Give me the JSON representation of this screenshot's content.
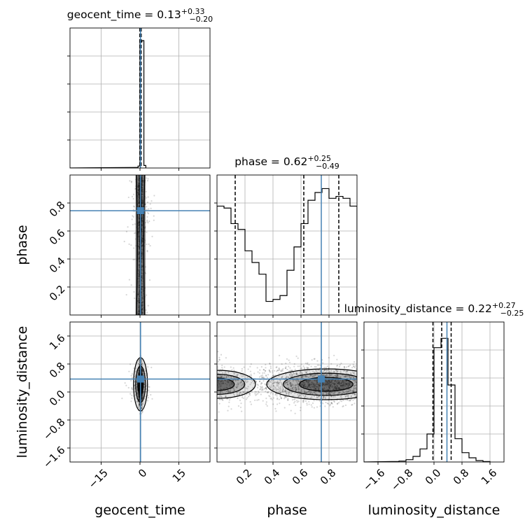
{
  "chart_data": {
    "type": "corner",
    "grid": true,
    "truth_color": "#4682b4",
    "parameters": [
      {
        "name": "geocent_time",
        "title": "geocent_time = 0.13",
        "title_upper": "+0.33",
        "title_lower": "−0.20",
        "range": [
          -27,
          27
        ],
        "ticks": [
          -15,
          0,
          15
        ],
        "tick_labels": [
          "−15",
          "0",
          "15"
        ],
        "truth": 0.2,
        "quantiles": [
          -0.07,
          0.13,
          0.46
        ],
        "hist": {
          "edges": [
            -1.5,
            -0.75,
            0,
            0.75,
            1.5,
            2.25
          ],
          "counts": [
            4,
            14,
            900,
            910,
            18
          ],
          "ymax": 1000
        }
      },
      {
        "name": "phase",
        "title": "phase = 0.62",
        "title_upper": "+0.25",
        "title_lower": "−0.49",
        "range": [
          0,
          1
        ],
        "ticks": [
          0.2,
          0.4,
          0.6,
          0.8
        ],
        "tick_labels": [
          "0.2",
          "0.4",
          "0.6",
          "0.8"
        ],
        "truth": 0.745,
        "quantiles": [
          0.13,
          0.62,
          0.87
        ],
        "hist": {
          "edges": [
            0,
            0.05,
            0.1,
            0.15,
            0.2,
            0.25,
            0.3,
            0.35,
            0.4,
            0.45,
            0.5,
            0.55,
            0.6,
            0.65,
            0.7,
            0.75,
            0.8,
            0.85,
            0.9,
            0.95,
            1.0
          ],
          "counts": [
            280,
            275,
            235,
            220,
            165,
            135,
            105,
            35,
            40,
            50,
            115,
            175,
            235,
            295,
            315,
            325,
            300,
            305,
            300,
            280
          ],
          "ymax": 360
        }
      },
      {
        "name": "luminosity_distance",
        "title": "luminosity_distance = 0.22",
        "title_upper": "+0.27",
        "title_lower": "−0.25",
        "range": [
          -2,
          2
        ],
        "ticks": [
          -1.6,
          -0.8,
          0,
          0.8,
          1.6
        ],
        "tick_labels": [
          "−1.6",
          "−0.8",
          "0.0",
          "0.8",
          "1.6"
        ],
        "truth": 0.37,
        "quantiles": [
          -0.03,
          0.22,
          0.49
        ],
        "hist": {
          "edges": [
            -1.2,
            -1.0,
            -0.8,
            -0.6,
            -0.4,
            -0.2,
            0.0,
            0.2,
            0.4,
            0.6,
            0.8,
            1.0,
            1.2,
            1.4,
            1.6
          ],
          "counts": [
            1,
            2,
            5,
            12,
            28,
            60,
            245,
            265,
            165,
            50,
            20,
            9,
            3,
            1
          ],
          "ymax": 300
        }
      }
    ],
    "pairs": [
      {
        "x": "geocent_time",
        "y": "phase",
        "truth": [
          0.2,
          0.745
        ]
      },
      {
        "x": "geocent_time",
        "y": "luminosity_distance",
        "truth": [
          0.2,
          0.37
        ]
      },
      {
        "x": "phase",
        "y": "luminosity_distance",
        "truth": [
          0.745,
          0.37
        ]
      }
    ]
  }
}
